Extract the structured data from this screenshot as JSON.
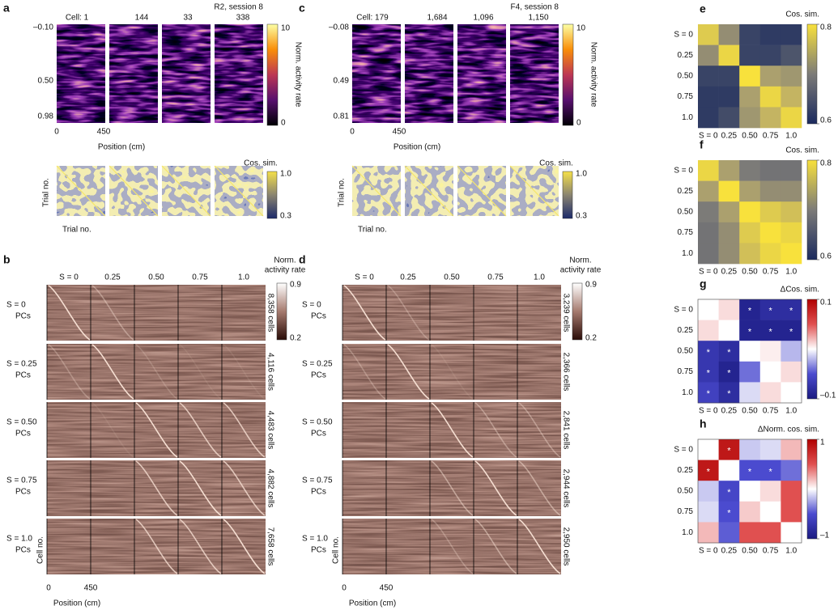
{
  "panels": {
    "a": {
      "label": "a",
      "subtitle": "R2, session 8",
      "cells": [
        "Cell: 1",
        "144",
        "33",
        "338"
      ],
      "yticks": [
        "–0.10",
        "0.50",
        "0.98"
      ],
      "xticks": [
        "0",
        "450"
      ],
      "xlabel": "Position (cm)",
      "colorbar": {
        "title": "Norm. activity rate",
        "ticks": [
          "10",
          "0"
        ]
      },
      "similarity": {
        "ylabel": "Trial no.",
        "xlabel": "Trial no.",
        "colorbar": {
          "title": "Cos. sim.",
          "ticks": [
            "1.0",
            "0.3"
          ]
        }
      }
    },
    "c": {
      "label": "c",
      "subtitle": "F4, session 8",
      "cells": [
        "Cell: 179",
        "1,684",
        "1,096",
        "1,150"
      ],
      "yticks": [
        "–0.08",
        "0.49",
        "0.81"
      ],
      "xticks": [
        "0",
        "450"
      ],
      "xlabel": "Position (cm)",
      "colorbar": {
        "title": "Norm. activity rate",
        "ticks": [
          "10",
          "0"
        ]
      },
      "similarity": {
        "ylabel": "Trial no.",
        "xlabel": "Trial no.",
        "colorbar": {
          "title": "Cos. sim.",
          "ticks": [
            "1.0",
            "0.3"
          ]
        }
      }
    },
    "b": {
      "label": "b",
      "columns": [
        "S = 0",
        "0.25",
        "0.50",
        "0.75",
        "1.0"
      ],
      "rows": [
        {
          "name": "S = 0",
          "sub": "PCs",
          "count": "8,358 cells"
        },
        {
          "name": "S = 0.25",
          "sub": "PCs",
          "count": "4,116 cells"
        },
        {
          "name": "S = 0.50",
          "sub": "PCs",
          "count": "4,483 cells"
        },
        {
          "name": "S = 0.75",
          "sub": "PCs",
          "count": "4,882 cells"
        },
        {
          "name": "S = 1.0",
          "sub": "PCs",
          "count": "7,658 cells"
        }
      ],
      "colorbar": {
        "title": [
          "Norm.",
          "activity rate"
        ],
        "ticks": [
          "0.9",
          "0.2"
        ]
      },
      "ylabel": "Cell no.",
      "xticks": [
        "0",
        "450"
      ],
      "xlabel": "Position (cm)"
    },
    "d": {
      "label": "d",
      "columns": [
        "S = 0",
        "0.25",
        "0.50",
        "0.75",
        "1.0"
      ],
      "rows": [
        {
          "name": "S = 0",
          "sub": "PCs",
          "count": "3,239 cells"
        },
        {
          "name": "S = 0.25",
          "sub": "PCs",
          "count": "2,366 cells"
        },
        {
          "name": "S = 0.50",
          "sub": "PCs",
          "count": "2,841 cells"
        },
        {
          "name": "S = 0.75",
          "sub": "PCs",
          "count": "2,944 cells"
        },
        {
          "name": "S = 1.0",
          "sub": "PCs",
          "count": "2,950 cells"
        }
      ],
      "colorbar": {
        "title": [
          "Norm.",
          "activity rate"
        ],
        "ticks": [
          "0.9",
          "0.2"
        ]
      },
      "ylabel": "Cell no.",
      "xticks": [
        "0",
        "450"
      ],
      "xlabel": "Position (cm)"
    },
    "e": {
      "label": "e",
      "colormap": "cividis",
      "colorbar_title": "Cos. sim.",
      "clim": [
        0.6,
        0.8
      ],
      "cticks": [
        0.8,
        0.6
      ],
      "rows": [
        "S = 0",
        "0.25",
        "0.50",
        "0.75",
        "1.0"
      ],
      "columns": [
        "S = 0",
        "0.25",
        "0.50",
        "0.75",
        "1.0"
      ],
      "values": [
        [
          0.78,
          0.72,
          0.63,
          0.62,
          0.62
        ],
        [
          0.72,
          0.79,
          0.63,
          0.63,
          0.65
        ],
        [
          0.63,
          0.63,
          0.8,
          0.74,
          0.73
        ],
        [
          0.62,
          0.62,
          0.74,
          0.79,
          0.76
        ],
        [
          0.62,
          0.64,
          0.73,
          0.76,
          0.79
        ]
      ]
    },
    "f": {
      "label": "f",
      "colormap": "cividis",
      "colorbar_title": "Cos. sim.",
      "clim": [
        0.6,
        0.8
      ],
      "cticks": [
        0.8,
        0.6
      ],
      "rows": [
        "S = 0",
        "0.25",
        "0.50",
        "0.75",
        "1.0"
      ],
      "columns": [
        "S = 0",
        "0.25",
        "0.50",
        "0.75",
        "1.0"
      ],
      "values": [
        [
          0.79,
          0.74,
          0.7,
          0.69,
          0.69
        ],
        [
          0.74,
          0.8,
          0.74,
          0.72,
          0.72
        ],
        [
          0.7,
          0.74,
          0.8,
          0.78,
          0.77
        ],
        [
          0.69,
          0.72,
          0.78,
          0.8,
          0.79
        ],
        [
          0.69,
          0.72,
          0.77,
          0.79,
          0.8
        ]
      ]
    },
    "g": {
      "label": "g",
      "colormap": "diverging",
      "colorbar_title": "ΔCos. sim.",
      "clim": [
        -0.1,
        0.1
      ],
      "cticks": [
        0.1,
        {
          "value": -0.1,
          "label": "–0.1"
        }
      ],
      "rows": [
        "S = 0",
        "0.25",
        "0.50",
        "0.75",
        "1.0"
      ],
      "columns": [
        "S = 0",
        "0.25",
        "0.50",
        "0.75",
        "1.0"
      ],
      "values": [
        [
          0,
          0.01,
          -0.09,
          -0.08,
          -0.08
        ],
        [
          0.01,
          0,
          -0.09,
          -0.09,
          -0.09
        ],
        [
          -0.07,
          -0.08,
          0,
          0.005,
          -0.02
        ],
        [
          -0.07,
          -0.09,
          -0.04,
          0,
          0.01
        ],
        [
          -0.06,
          -0.08,
          -0.01,
          0.01,
          0
        ]
      ],
      "stars": [
        [
          null,
          null,
          "*",
          "*",
          "*"
        ],
        [
          null,
          null,
          "*",
          "*",
          "*"
        ],
        [
          "*",
          "*",
          null,
          null,
          null
        ],
        [
          "*",
          "*",
          null,
          null,
          null
        ],
        [
          "*",
          "*",
          null,
          null,
          null
        ]
      ]
    },
    "h": {
      "label": "h",
      "colormap": "diverging",
      "colorbar_title": "ΔNorm. cos. sim.",
      "clim": [
        -1,
        1
      ],
      "cticks": [
        1,
        {
          "value": -1,
          "label": "–1"
        }
      ],
      "rows": [
        "S = 0",
        "0.25",
        "0.50",
        "0.75",
        "1.0"
      ],
      "columns": [
        "S = 0",
        "0.25",
        "0.50",
        "0.75",
        "1.0"
      ],
      "values": [
        [
          0,
          0.85,
          -0.15,
          -0.1,
          0.2
        ],
        [
          0.85,
          0,
          -0.5,
          -0.5,
          -0.4
        ],
        [
          -0.15,
          -0.55,
          0,
          0.1,
          0.5
        ],
        [
          -0.1,
          -0.5,
          0.15,
          0,
          0.5
        ],
        [
          0.2,
          -0.45,
          0.5,
          0.5,
          0
        ]
      ],
      "stars": [
        [
          null,
          "*",
          null,
          null,
          null
        ],
        [
          "*",
          null,
          "*",
          "*",
          null
        ],
        [
          null,
          "*",
          null,
          null,
          null
        ],
        [
          null,
          "*",
          null,
          null,
          null
        ],
        [
          null,
          null,
          null,
          null,
          null
        ]
      ]
    }
  }
}
